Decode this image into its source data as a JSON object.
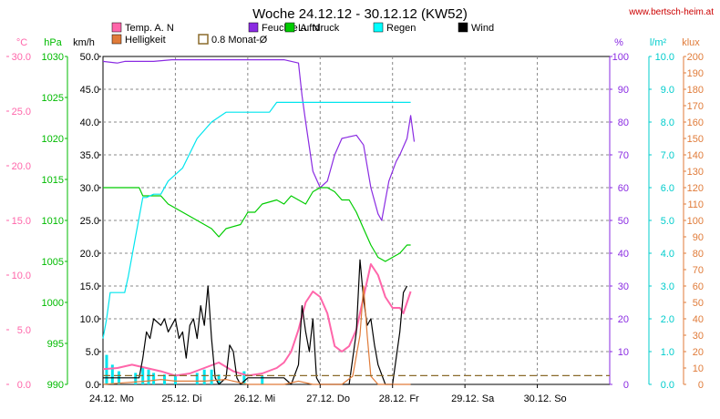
{
  "chart_data": {
    "type": "line",
    "title": "Woche 24.12.12 - 30.12.12 (KW52)",
    "source_url": "www.bertsch-heim.at",
    "x_categories": [
      "24.12. Mo",
      "25.12. Di",
      "26.12. Mi",
      "27.12. Do",
      "28.12. Fr",
      "29.12. Sa",
      "30.12. So"
    ],
    "x_range_days": [
      0,
      7
    ],
    "grid": true,
    "legend": [
      {
        "label": "Temp. A. N",
        "color": "#ff66aa",
        "style": "filled"
      },
      {
        "label": "Feuchte A. N",
        "color": "#8a2be2",
        "style": "filled"
      },
      {
        "label": "Luftdruck",
        "color": "#00cc00",
        "style": "filled"
      },
      {
        "label": "Regen",
        "color": "#00ffff",
        "style": "filled"
      },
      {
        "label": "Wind",
        "color": "#000000",
        "style": "filled"
      },
      {
        "label": "Helligkeit",
        "color": "#e07b39",
        "style": "filled"
      },
      {
        "label": "0.8 Monat-Ø",
        "color": "#8b6b2b",
        "style": "outline"
      }
    ],
    "axes": {
      "temp": {
        "unit": "°C",
        "min": 0,
        "max": 30,
        "ticks": [
          "0.0",
          "5.0",
          "10.0",
          "15.0",
          "20.0",
          "25.0",
          "30.0"
        ],
        "color": "#ff66aa"
      },
      "pressure": {
        "unit": "hPa",
        "min": 990,
        "max": 1030,
        "ticks": [
          "990",
          "995",
          "1000",
          "1005",
          "1010",
          "1015",
          "1020",
          "1025",
          "1030"
        ],
        "color": "#00bb00"
      },
      "wind": {
        "unit": "km/h",
        "min": 0,
        "max": 50,
        "ticks": [
          "0.0",
          "5.0",
          "10.0",
          "15.0",
          "20.0",
          "25.0",
          "30.0",
          "35.0",
          "40.0",
          "45.0",
          "50.0"
        ],
        "color": "#000000"
      },
      "humidity": {
        "unit": "%",
        "min": 0,
        "max": 100,
        "ticks": [
          "0",
          "10",
          "20",
          "30",
          "40",
          "50",
          "60",
          "70",
          "80",
          "90",
          "100"
        ],
        "color": "#8a2be2"
      },
      "rain": {
        "unit": "l/m²",
        "min": 0,
        "max": 10,
        "ticks": [
          "0.0",
          "1.0",
          "2.0",
          "3.0",
          "4.0",
          "5.0",
          "6.0",
          "7.0",
          "8.0",
          "9.0",
          "10.0"
        ],
        "color": "#00cccc"
      },
      "light": {
        "unit": "klux",
        "min": 0,
        "max": 200,
        "ticks": [
          "0",
          "10",
          "20",
          "30",
          "40",
          "50",
          "60",
          "70",
          "80",
          "90",
          "100",
          "110",
          "120",
          "130",
          "140",
          "150",
          "160",
          "170",
          "180",
          "190",
          "200"
        ],
        "color": "#e07b39"
      }
    },
    "series": [
      {
        "name": "Feuchte A. N",
        "axis": "humidity",
        "color": "#8a2be2",
        "points": [
          [
            0,
            98.5
          ],
          [
            0.2,
            98
          ],
          [
            0.3,
            98.5
          ],
          [
            0.5,
            98.5
          ],
          [
            0.7,
            98.5
          ],
          [
            0.95,
            99
          ],
          [
            1.5,
            99
          ],
          [
            2,
            99
          ],
          [
            2.5,
            99
          ],
          [
            2.7,
            98
          ],
          [
            2.75,
            88
          ],
          [
            2.8,
            80
          ],
          [
            2.9,
            65
          ],
          [
            3.0,
            60
          ],
          [
            3.1,
            62
          ],
          [
            3.2,
            70
          ],
          [
            3.3,
            75
          ],
          [
            3.5,
            76
          ],
          [
            3.6,
            73
          ],
          [
            3.7,
            60
          ],
          [
            3.8,
            52
          ],
          [
            3.85,
            50
          ],
          [
            3.95,
            62
          ],
          [
            4.05,
            68
          ],
          [
            4.1,
            70
          ],
          [
            4.2,
            75
          ],
          [
            4.25,
            82
          ],
          [
            4.3,
            74
          ]
        ]
      },
      {
        "name": "Luftdruck",
        "axis": "pressure",
        "color": "#00cc00",
        "points": [
          [
            0,
            1014
          ],
          [
            0.3,
            1014
          ],
          [
            0.5,
            1014
          ],
          [
            0.55,
            1013
          ],
          [
            0.8,
            1013
          ],
          [
            0.9,
            1012
          ],
          [
            1.1,
            1011
          ],
          [
            1.3,
            1010
          ],
          [
            1.5,
            1009
          ],
          [
            1.6,
            1008
          ],
          [
            1.7,
            1009
          ],
          [
            1.9,
            1009.5
          ],
          [
            2.0,
            1011
          ],
          [
            2.1,
            1011
          ],
          [
            2.2,
            1012
          ],
          [
            2.4,
            1012.5
          ],
          [
            2.5,
            1012
          ],
          [
            2.6,
            1013
          ],
          [
            2.8,
            1012
          ],
          [
            2.9,
            1013.5
          ],
          [
            3.0,
            1014
          ],
          [
            3.1,
            1014
          ],
          [
            3.2,
            1013.5
          ],
          [
            3.3,
            1012.5
          ],
          [
            3.4,
            1012.5
          ],
          [
            3.5,
            1011
          ],
          [
            3.6,
            1009
          ],
          [
            3.7,
            1007
          ],
          [
            3.8,
            1005.5
          ],
          [
            3.9,
            1005
          ],
          [
            4.0,
            1005.5
          ],
          [
            4.1,
            1006
          ],
          [
            4.2,
            1007
          ],
          [
            4.25,
            1007
          ]
        ]
      },
      {
        "name": "Regen",
        "axis": "rain",
        "color": "#00e5ee",
        "points": [
          [
            0,
            1.4
          ],
          [
            0.05,
            2.0
          ],
          [
            0.1,
            2.8
          ],
          [
            0.2,
            2.8
          ],
          [
            0.3,
            2.8
          ],
          [
            0.35,
            3.3
          ],
          [
            0.45,
            4.5
          ],
          [
            0.55,
            5.7
          ],
          [
            0.6,
            5.7
          ],
          [
            0.7,
            5.8
          ],
          [
            0.8,
            5.8
          ],
          [
            0.9,
            6.2
          ],
          [
            1.1,
            6.6
          ],
          [
            1.3,
            7.5
          ],
          [
            1.5,
            8.0
          ],
          [
            1.7,
            8.3
          ],
          [
            2.0,
            8.3
          ],
          [
            2.3,
            8.3
          ],
          [
            2.4,
            8.6
          ],
          [
            2.5,
            8.6
          ],
          [
            2.7,
            8.6
          ],
          [
            2.8,
            8.6
          ],
          [
            3.0,
            8.6
          ],
          [
            3.5,
            8.6
          ],
          [
            4.0,
            8.6
          ],
          [
            4.25,
            8.6
          ]
        ]
      },
      {
        "name": "Temp. A. N",
        "axis": "temp",
        "color": "#ff66aa",
        "points": [
          [
            0,
            1.4
          ],
          [
            0.2,
            1.5
          ],
          [
            0.4,
            1.8
          ],
          [
            0.6,
            1.5
          ],
          [
            0.8,
            1.2
          ],
          [
            1.0,
            0.8
          ],
          [
            1.2,
            1.0
          ],
          [
            1.4,
            1.5
          ],
          [
            1.6,
            2.0
          ],
          [
            1.8,
            1.2
          ],
          [
            2.0,
            0.8
          ],
          [
            2.2,
            1.0
          ],
          [
            2.4,
            1.5
          ],
          [
            2.5,
            2.0
          ],
          [
            2.6,
            3.0
          ],
          [
            2.7,
            5.0
          ],
          [
            2.8,
            7.5
          ],
          [
            2.9,
            8.5
          ],
          [
            3.0,
            8.0
          ],
          [
            3.1,
            6.5
          ],
          [
            3.2,
            3.5
          ],
          [
            3.3,
            3.0
          ],
          [
            3.4,
            3.5
          ],
          [
            3.5,
            5.0
          ],
          [
            3.6,
            8.0
          ],
          [
            3.7,
            11.0
          ],
          [
            3.8,
            10.0
          ],
          [
            3.9,
            8.0
          ],
          [
            4.0,
            7.0
          ],
          [
            4.1,
            7.0
          ],
          [
            4.15,
            6.5
          ],
          [
            4.2,
            7.5
          ],
          [
            4.25,
            8.5
          ]
        ]
      },
      {
        "name": "Wind",
        "axis": "wind",
        "color": "#000000",
        "points": [
          [
            0,
            1
          ],
          [
            0.5,
            1
          ],
          [
            0.55,
            4
          ],
          [
            0.6,
            8
          ],
          [
            0.65,
            7
          ],
          [
            0.7,
            10
          ],
          [
            0.8,
            9
          ],
          [
            0.85,
            10
          ],
          [
            0.9,
            8
          ],
          [
            0.95,
            9
          ],
          [
            1.0,
            10
          ],
          [
            1.05,
            7
          ],
          [
            1.1,
            8
          ],
          [
            1.15,
            4
          ],
          [
            1.2,
            9
          ],
          [
            1.25,
            10
          ],
          [
            1.3,
            7
          ],
          [
            1.35,
            12
          ],
          [
            1.4,
            9
          ],
          [
            1.45,
            15
          ],
          [
            1.5,
            7
          ],
          [
            1.55,
            1
          ],
          [
            1.6,
            0
          ],
          [
            1.7,
            1
          ],
          [
            1.75,
            6
          ],
          [
            1.8,
            5
          ],
          [
            1.85,
            1
          ],
          [
            1.9,
            0
          ],
          [
            2.0,
            1
          ],
          [
            2.5,
            1
          ],
          [
            2.6,
            0
          ],
          [
            2.7,
            3
          ],
          [
            2.75,
            12
          ],
          [
            2.8,
            8
          ],
          [
            2.85,
            5
          ],
          [
            2.9,
            10
          ],
          [
            2.95,
            1
          ],
          [
            3.0,
            0
          ],
          [
            3.4,
            0
          ],
          [
            3.5,
            8
          ],
          [
            3.55,
            19
          ],
          [
            3.6,
            13
          ],
          [
            3.65,
            9
          ],
          [
            3.7,
            10
          ],
          [
            3.75,
            6
          ],
          [
            3.8,
            3
          ],
          [
            3.9,
            0
          ],
          [
            4.0,
            0
          ],
          [
            4.1,
            8
          ],
          [
            4.15,
            14
          ],
          [
            4.2,
            15
          ]
        ]
      },
      {
        "name": "Helligkeit",
        "axis": "light",
        "color": "#e07b39",
        "points": [
          [
            0,
            0
          ],
          [
            0.6,
            2
          ],
          [
            0.8,
            3
          ],
          [
            1.0,
            2
          ],
          [
            1.4,
            2
          ],
          [
            1.7,
            3
          ],
          [
            2.0,
            0
          ],
          [
            2.5,
            0
          ],
          [
            2.7,
            2
          ],
          [
            2.9,
            0
          ],
          [
            3.3,
            0
          ],
          [
            3.45,
            5
          ],
          [
            3.55,
            30
          ],
          [
            3.6,
            60
          ],
          [
            3.65,
            30
          ],
          [
            3.7,
            5
          ],
          [
            3.8,
            0
          ],
          [
            4.25,
            0
          ]
        ]
      },
      {
        "name": "0.8 Monat-Ø",
        "axis": "temp",
        "color": "#8b6b2b",
        "dashed": true,
        "points": [
          [
            0,
            0.8
          ],
          [
            7,
            0.8
          ]
        ]
      }
    ],
    "rain_bars": [
      {
        "x": 0.05,
        "v": 0.9
      },
      {
        "x": 0.13,
        "v": 0.6
      },
      {
        "x": 0.22,
        "v": 0.4
      },
      {
        "x": 0.45,
        "v": 0.35
      },
      {
        "x": 0.55,
        "v": 0.5
      },
      {
        "x": 0.63,
        "v": 0.45
      },
      {
        "x": 0.7,
        "v": 0.35
      },
      {
        "x": 0.85,
        "v": 0.3
      },
      {
        "x": 1.0,
        "v": 0.3
      },
      {
        "x": 1.3,
        "v": 0.35
      },
      {
        "x": 1.4,
        "v": 0.45
      },
      {
        "x": 1.5,
        "v": 0.45
      },
      {
        "x": 1.6,
        "v": 0.3
      },
      {
        "x": 1.95,
        "v": 0.4
      },
      {
        "x": 2.2,
        "v": 0.25
      }
    ]
  }
}
